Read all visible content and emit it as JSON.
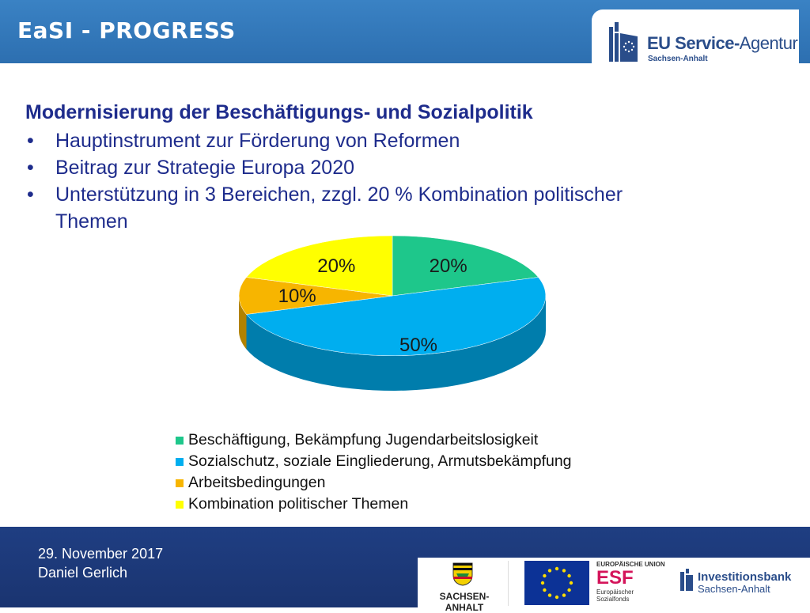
{
  "header": {
    "title": "EaSI - PROGRESS"
  },
  "logo": {
    "name_bold": "EU Service-",
    "name_regular": "Agentur",
    "subtitle": "Sachsen-Anhalt"
  },
  "content": {
    "heading": "Modernisierung der Beschäftigungs- und Sozialpolitik",
    "bullets": [
      "Hauptinstrument zur Förderung von Reformen",
      "Beitrag zur Strategie Europa 2020",
      "Unterstützung in 3 Bereichen, zzgl. 20 % Kombination politischer Themen"
    ],
    "bullet_symbol": "•"
  },
  "chart_data": {
    "type": "pie",
    "labels": [
      "Beschäftigung, Bekämpfung Jugendarbeitslosigkeit",
      "Sozialschutz, soziale Eingliederung, Armutsbekämpfung",
      "Arbeitsbedingungen",
      "Kombination politischer Themen"
    ],
    "values": [
      20,
      50,
      10,
      20
    ],
    "data_labels": [
      "20%",
      "50%",
      "10%",
      "20%"
    ],
    "colors": [
      "#1ec78b",
      "#00aeef",
      "#f7b500",
      "#ffff00"
    ],
    "style": "3d",
    "legend_position": "bottom"
  },
  "footer": {
    "date": "29. November 2017",
    "author": "Daniel Gerlich"
  },
  "partner_logos": {
    "sachsen_anhalt": "SACHSEN-ANHALT",
    "esf_top": "EUROPÄISCHE UNION",
    "esf_big": "ESF",
    "esf_small_1": "Europäischer",
    "esf_small_2": "Sozialfonds",
    "ib_line1": "Investitionsbank",
    "ib_line2": "Sachsen-Anhalt"
  }
}
